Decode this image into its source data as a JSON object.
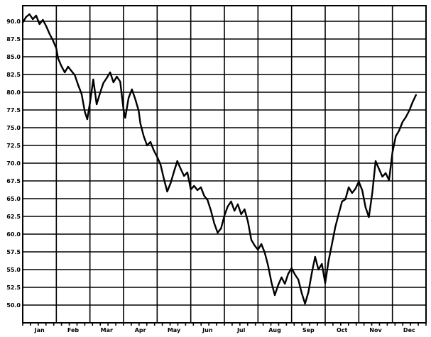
{
  "chart_data": {
    "type": "line",
    "title": "",
    "xlabel": "",
    "ylabel": "",
    "categories": [
      "Jan",
      "Feb",
      "Mar",
      "Apr",
      "May",
      "Jun",
      "Jul",
      "Aug",
      "Sep",
      "Oct",
      "Nov",
      "Dec"
    ],
    "yticks": [
      "90.0",
      "87.5",
      "85.0",
      "82.5",
      "80.0",
      "77.5",
      "75.0",
      "72.5",
      "70.0",
      "67.5",
      "65.0",
      "62.5",
      "60.0",
      "57.5",
      "55.0",
      "52.5",
      "50.0"
    ],
    "ylim": [
      47.5,
      92.2
    ],
    "xlim": [
      0,
      12
    ],
    "grid": true,
    "series": [
      {
        "color": "#000000",
        "points": [
          [
            0.0,
            89.8
          ],
          [
            0.1,
            90.6
          ],
          [
            0.2,
            91.0
          ],
          [
            0.3,
            90.3
          ],
          [
            0.4,
            90.8
          ],
          [
            0.5,
            89.6
          ],
          [
            0.6,
            90.2
          ],
          [
            0.7,
            89.3
          ],
          [
            0.8,
            88.2
          ],
          [
            0.9,
            87.3
          ],
          [
            1.0,
            86.2
          ],
          [
            1.05,
            84.8
          ],
          [
            1.15,
            83.7
          ],
          [
            1.25,
            82.8
          ],
          [
            1.35,
            83.6
          ],
          [
            1.45,
            83.0
          ],
          [
            1.55,
            82.4
          ],
          [
            1.65,
            81.0
          ],
          [
            1.75,
            79.8
          ],
          [
            1.85,
            77.2
          ],
          [
            1.92,
            76.2
          ],
          [
            2.0,
            78.5
          ],
          [
            2.1,
            81.8
          ],
          [
            2.2,
            78.3
          ],
          [
            2.3,
            79.9
          ],
          [
            2.4,
            81.3
          ],
          [
            2.5,
            82.0
          ],
          [
            2.6,
            82.8
          ],
          [
            2.7,
            81.4
          ],
          [
            2.8,
            82.2
          ],
          [
            2.9,
            81.5
          ],
          [
            3.0,
            77.5
          ],
          [
            3.05,
            76.4
          ],
          [
            3.15,
            79.2
          ],
          [
            3.25,
            80.4
          ],
          [
            3.35,
            79.0
          ],
          [
            3.45,
            77.4
          ],
          [
            3.5,
            75.6
          ],
          [
            3.6,
            73.8
          ],
          [
            3.7,
            72.5
          ],
          [
            3.8,
            73.0
          ],
          [
            3.9,
            71.8
          ],
          [
            4.0,
            70.9
          ],
          [
            4.1,
            69.8
          ],
          [
            4.2,
            67.8
          ],
          [
            4.3,
            66.0
          ],
          [
            4.4,
            67.2
          ],
          [
            4.5,
            68.8
          ],
          [
            4.6,
            70.3
          ],
          [
            4.7,
            69.2
          ],
          [
            4.8,
            68.2
          ],
          [
            4.9,
            68.7
          ],
          [
            5.0,
            66.3
          ],
          [
            5.1,
            66.8
          ],
          [
            5.2,
            66.2
          ],
          [
            5.3,
            66.6
          ],
          [
            5.4,
            65.4
          ],
          [
            5.5,
            64.8
          ],
          [
            5.6,
            63.3
          ],
          [
            5.7,
            61.5
          ],
          [
            5.8,
            60.2
          ],
          [
            5.9,
            60.8
          ],
          [
            6.0,
            62.6
          ],
          [
            6.1,
            63.9
          ],
          [
            6.2,
            64.6
          ],
          [
            6.3,
            63.3
          ],
          [
            6.4,
            64.2
          ],
          [
            6.5,
            62.8
          ],
          [
            6.6,
            63.5
          ],
          [
            6.7,
            61.8
          ],
          [
            6.8,
            59.2
          ],
          [
            6.9,
            58.4
          ],
          [
            7.0,
            57.8
          ],
          [
            7.1,
            58.6
          ],
          [
            7.2,
            57.4
          ],
          [
            7.3,
            55.6
          ],
          [
            7.4,
            53.2
          ],
          [
            7.5,
            51.4
          ],
          [
            7.6,
            52.8
          ],
          [
            7.7,
            53.9
          ],
          [
            7.8,
            53.0
          ],
          [
            7.9,
            54.4
          ],
          [
            8.0,
            55.2
          ],
          [
            8.1,
            54.3
          ],
          [
            8.2,
            53.6
          ],
          [
            8.3,
            51.7
          ],
          [
            8.4,
            50.2
          ],
          [
            8.5,
            51.8
          ],
          [
            8.6,
            54.5
          ],
          [
            8.7,
            56.8
          ],
          [
            8.8,
            55.0
          ],
          [
            8.9,
            55.8
          ],
          [
            9.0,
            53.1
          ],
          [
            9.1,
            56.2
          ],
          [
            9.2,
            58.6
          ],
          [
            9.3,
            61.0
          ],
          [
            9.4,
            62.8
          ],
          [
            9.5,
            64.6
          ],
          [
            9.6,
            64.9
          ],
          [
            9.7,
            66.6
          ],
          [
            9.8,
            65.8
          ],
          [
            9.9,
            66.4
          ],
          [
            10.0,
            67.4
          ],
          [
            10.1,
            66.2
          ],
          [
            10.2,
            63.8
          ],
          [
            10.3,
            62.4
          ],
          [
            10.4,
            65.8
          ],
          [
            10.5,
            70.3
          ],
          [
            10.6,
            69.2
          ],
          [
            10.7,
            68.1
          ],
          [
            10.8,
            68.6
          ],
          [
            10.9,
            67.6
          ],
          [
            11.0,
            71.5
          ],
          [
            11.1,
            73.8
          ],
          [
            11.2,
            74.6
          ],
          [
            11.3,
            75.8
          ],
          [
            11.4,
            76.5
          ],
          [
            11.5,
            77.4
          ],
          [
            11.6,
            78.6
          ],
          [
            11.7,
            79.6
          ]
        ]
      }
    ]
  }
}
